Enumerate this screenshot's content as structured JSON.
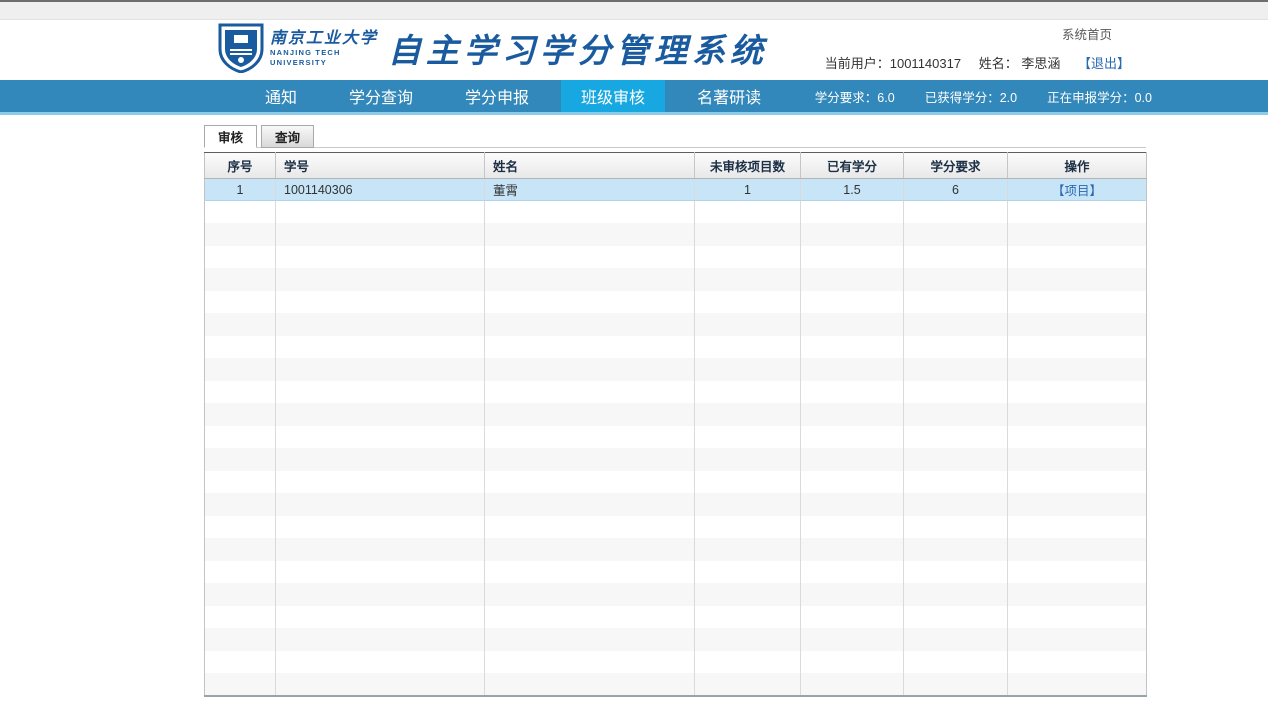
{
  "page": {
    "home_link": "系统首页"
  },
  "header": {
    "logo": {
      "cn_name": "南京工业大学",
      "en_line1": "NANJING TECH",
      "en_line2": "UNIVERSITY"
    },
    "system_title": "自主学习学分管理系统",
    "user_bar": {
      "current_user_label": "当前用户：",
      "user_id": "1001140317",
      "name_label": "姓名：",
      "user_name": "李思涵",
      "logout_label": "【退出】"
    }
  },
  "nav": {
    "items": [
      {
        "label": "通知",
        "active": false
      },
      {
        "label": "学分查询",
        "active": false
      },
      {
        "label": "学分申报",
        "active": false
      },
      {
        "label": "班级审核",
        "active": true
      },
      {
        "label": "名著研读",
        "active": false
      }
    ],
    "stats": [
      {
        "label": "学分要求：",
        "value": "6.0"
      },
      {
        "label": "已获得学分：",
        "value": "2.0"
      },
      {
        "label": "正在申报学分：",
        "value": "0.0"
      }
    ]
  },
  "tabs": [
    {
      "label": "审核",
      "active": true
    },
    {
      "label": "查询",
      "active": false
    }
  ],
  "table": {
    "columns": [
      "序号",
      "学号",
      "姓名",
      "未审核项目数",
      "已有学分",
      "学分要求",
      "操作"
    ],
    "rows": [
      {
        "seq": "1",
        "student_id": "1001140306",
        "name": "董霄",
        "pending_items": "1",
        "earned_credits": "1.5",
        "required_credits": "6",
        "action": "【项目】"
      }
    ],
    "empty_row_count": 22
  },
  "colors": {
    "navbar_bg": "#3288ba",
    "navbar_active": "#18a8e1",
    "selected_row_bg": "#c7e5f7",
    "link": "#2a68b0",
    "brand_blue": "#1a5a9e"
  }
}
